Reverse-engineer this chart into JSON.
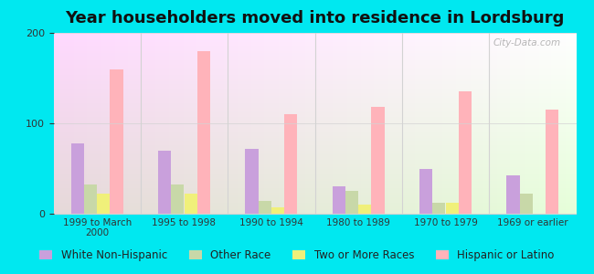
{
  "title": "Year householders moved into residence in Lordsburg",
  "categories": [
    "1999 to March\n2000",
    "1995 to 1998",
    "1990 to 1994",
    "1980 to 1989",
    "1970 to 1979",
    "1969 or earlier"
  ],
  "series": {
    "White Non-Hispanic": [
      78,
      70,
      72,
      30,
      50,
      42
    ],
    "Other Race": [
      32,
      32,
      14,
      25,
      12,
      22
    ],
    "Two or More Races": [
      22,
      22,
      7,
      10,
      12,
      0
    ],
    "Hispanic or Latino": [
      160,
      180,
      110,
      118,
      135,
      115
    ]
  },
  "colors": {
    "White Non-Hispanic": "#c9a0dc",
    "Other Race": "#c8d8a8",
    "Two or More Races": "#f0f07a",
    "Hispanic or Latino": "#ffb3ba"
  },
  "ylim": [
    0,
    200
  ],
  "yticks": [
    0,
    100,
    200
  ],
  "background_outer": "#00e8f0",
  "watermark": "City-Data.com",
  "title_fontsize": 13,
  "legend_fontsize": 8.5,
  "bar_width": 0.15
}
